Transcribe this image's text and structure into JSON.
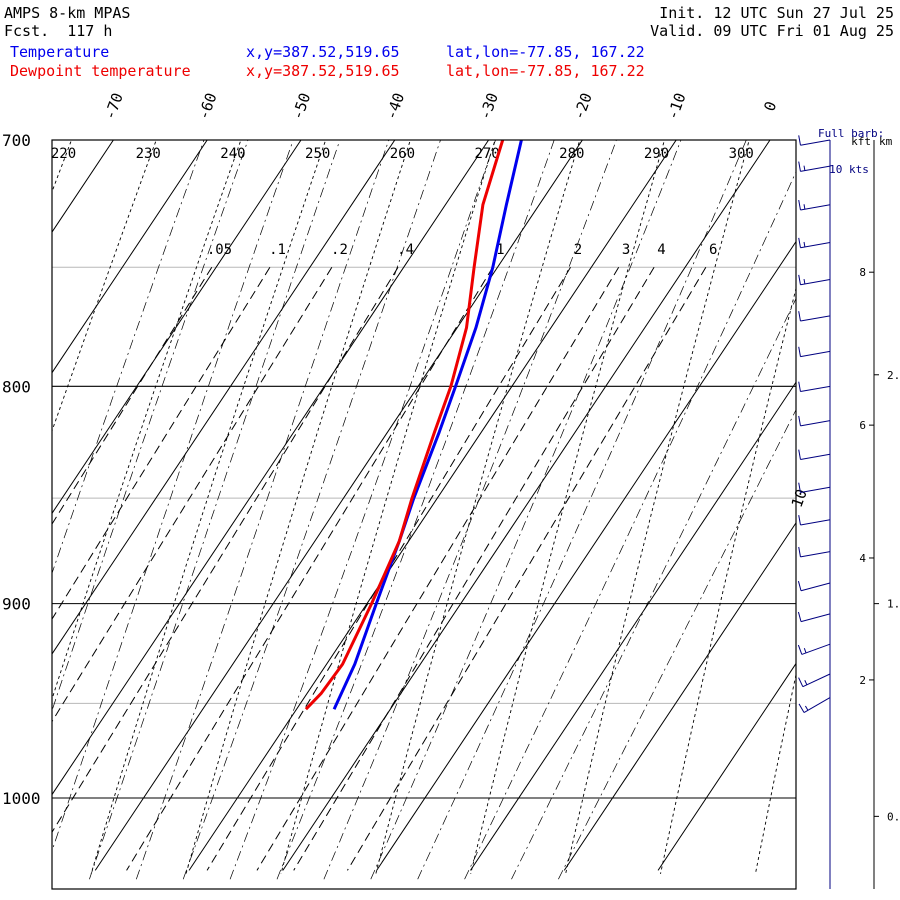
{
  "header": {
    "model": "AMPS 8-km MPAS",
    "fcst": "Fcst.  117 h",
    "init": "Init. 12 UTC Sun 27 Jul 25",
    "valid": "Valid. 09 UTC Fri 01 Aug 25"
  },
  "legend": [
    {
      "name": "Temperature",
      "xy": "x,y=387.52,519.65",
      "latlon": "lat,lon=-77.85, 167.22",
      "color": "#0000ee"
    },
    {
      "name": "Dewpoint temperature",
      "xy": "x,y=387.52,519.65",
      "latlon": "lat,lon=-77.85, 167.22",
      "color": "#ee0000"
    }
  ],
  "barb_note": {
    "line1": "Full barb:",
    "line2": "10 kts"
  },
  "height_axis": {
    "kft_label": "kft",
    "km_label": "km",
    "kft_ticks": [
      {
        "p": 938,
        "label": "2"
      },
      {
        "p": 878,
        "label": "4"
      },
      {
        "p": 817,
        "label": "6"
      },
      {
        "p": 752,
        "label": "8"
      }
    ],
    "km_ticks": [
      {
        "p": 1010,
        "label": "0."
      },
      {
        "p": 900,
        "label": "1."
      },
      {
        "p": 795,
        "label": "2."
      }
    ]
  },
  "chart_data": {
    "type": "line",
    "title": "",
    "xlabel": "",
    "ylabel": "",
    "plot": "skew-T log-p",
    "pressure_range_hPa": [
      700,
      1040
    ],
    "pressure_labels": [
      700,
      800,
      900,
      1000
    ],
    "temperature_labels_C": [
      -70,
      -60,
      -50,
      -40,
      -30,
      -20,
      -10,
      0
    ],
    "theta_labels_K": [
      220,
      230,
      240,
      250,
      260,
      270,
      280,
      290,
      300
    ],
    "mixing_ratio_labels": [
      ".05",
      ".1",
      ".2",
      ".4",
      "1",
      "2",
      "3",
      "4",
      "6"
    ],
    "isotherm_side_label": "10",
    "series": [
      {
        "name": "Temperature",
        "color": "#0000ee",
        "points": [
          [
            953,
            -6.0
          ],
          [
            930,
            -7.0
          ],
          [
            900,
            -9.0
          ],
          [
            870,
            -11.0
          ],
          [
            850,
            -12.5
          ],
          [
            820,
            -14.5
          ],
          [
            800,
            -16.0
          ],
          [
            775,
            -18.0
          ],
          [
            750,
            -20.5
          ],
          [
            725,
            -23.5
          ],
          [
            700,
            -26.5
          ]
        ]
      },
      {
        "name": "Dewpoint temperature",
        "color": "#ee0000",
        "points": [
          [
            953,
            -9.0
          ],
          [
            945,
            -8.5
          ],
          [
            930,
            -8.3
          ],
          [
            900,
            -9.5
          ],
          [
            870,
            -11.0
          ],
          [
            850,
            -12.7
          ],
          [
            820,
            -15.0
          ],
          [
            800,
            -16.5
          ],
          [
            775,
            -19.0
          ],
          [
            750,
            -22.5
          ],
          [
            725,
            -26.0
          ],
          [
            700,
            -28.5
          ]
        ]
      }
    ],
    "wind_barbs": [
      {
        "p": 947,
        "speed_kt": 15,
        "dir_deg": 240
      },
      {
        "p": 935,
        "speed_kt": 15,
        "dir_deg": 245
      },
      {
        "p": 920,
        "speed_kt": 15,
        "dir_deg": 250
      },
      {
        "p": 905,
        "speed_kt": 10,
        "dir_deg": 255
      },
      {
        "p": 890,
        "speed_kt": 10,
        "dir_deg": 255
      },
      {
        "p": 875,
        "speed_kt": 10,
        "dir_deg": 260
      },
      {
        "p": 860,
        "speed_kt": 10,
        "dir_deg": 260
      },
      {
        "p": 845,
        "speed_kt": 10,
        "dir_deg": 260
      },
      {
        "p": 830,
        "speed_kt": 10,
        "dir_deg": 260
      },
      {
        "p": 815,
        "speed_kt": 10,
        "dir_deg": 260
      },
      {
        "p": 800,
        "speed_kt": 10,
        "dir_deg": 260
      },
      {
        "p": 785,
        "speed_kt": 10,
        "dir_deg": 260
      },
      {
        "p": 770,
        "speed_kt": 10,
        "dir_deg": 260
      },
      {
        "p": 755,
        "speed_kt": 15,
        "dir_deg": 260
      },
      {
        "p": 740,
        "speed_kt": 15,
        "dir_deg": 260
      },
      {
        "p": 725,
        "speed_kt": 15,
        "dir_deg": 260
      },
      {
        "p": 710,
        "speed_kt": 15,
        "dir_deg": 260
      },
      {
        "p": 700,
        "speed_kt": 10,
        "dir_deg": 260
      }
    ]
  }
}
